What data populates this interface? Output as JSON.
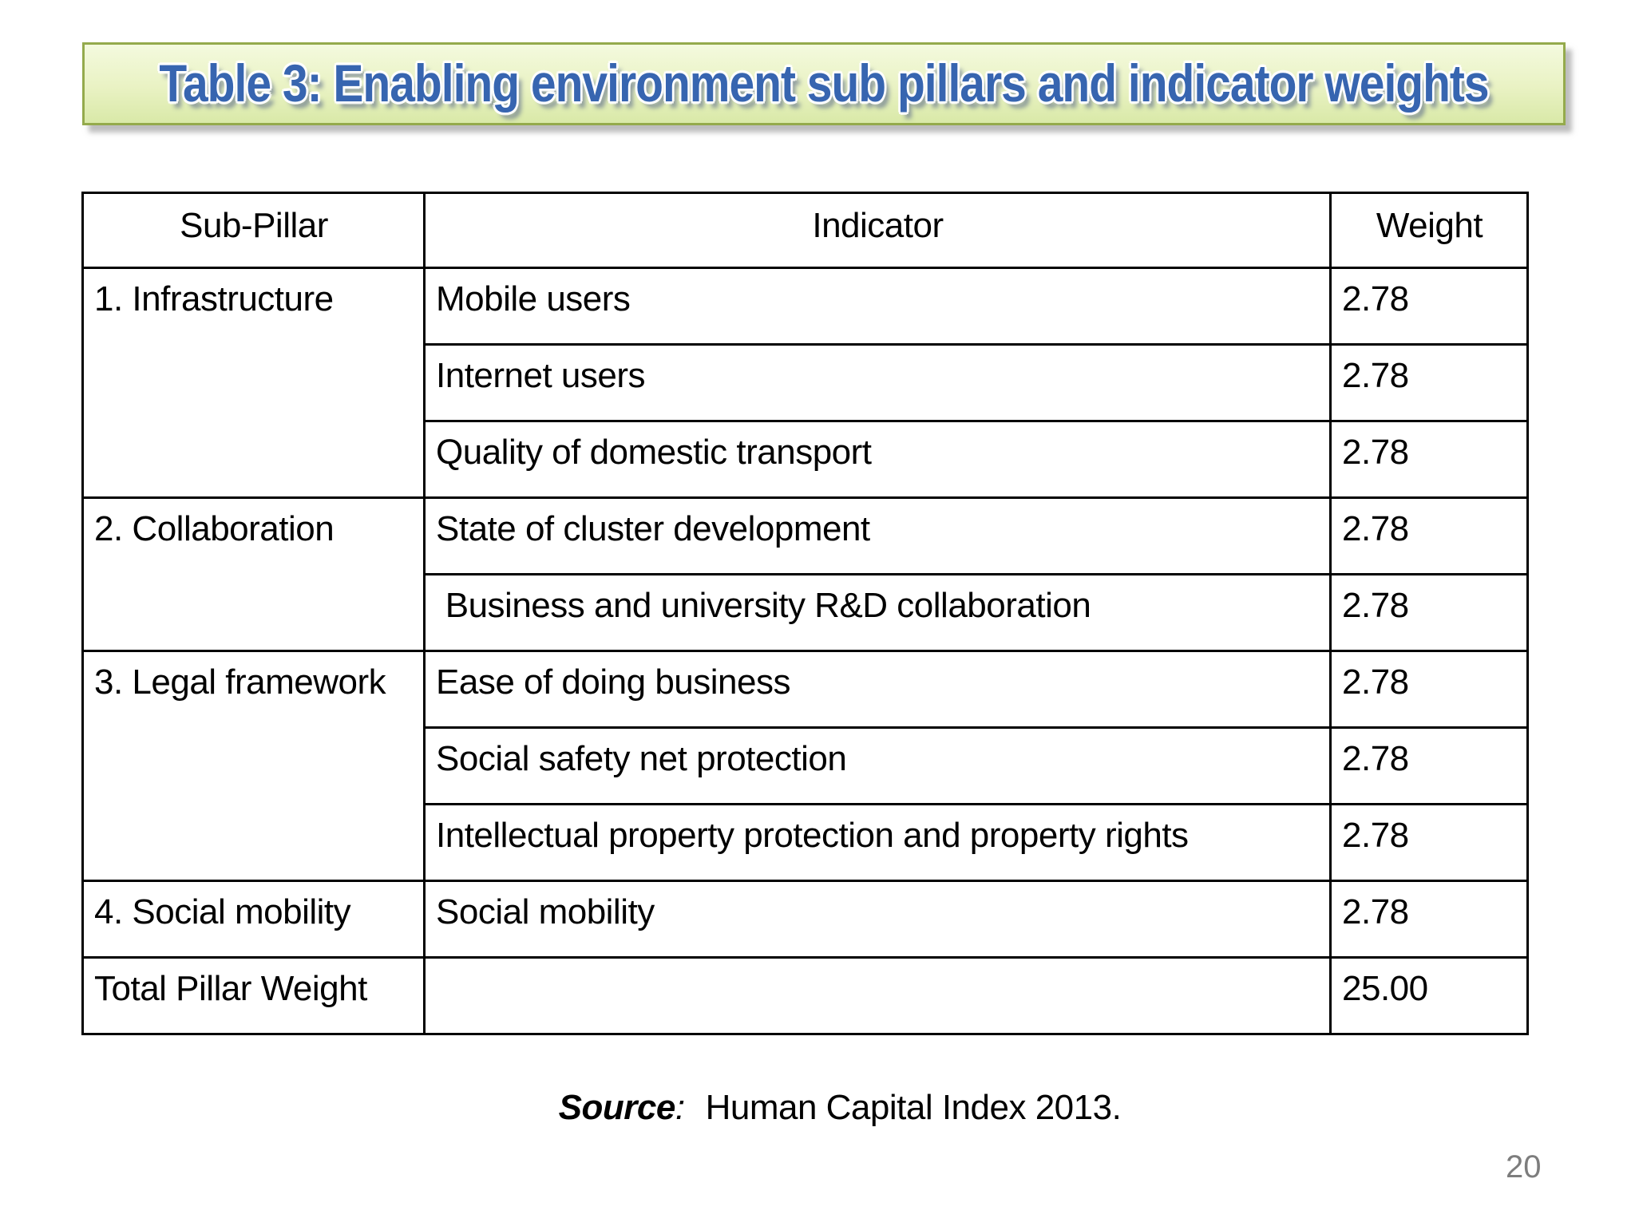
{
  "slide": {
    "title": "Table 3: Enabling environment sub pillars and indicator weights",
    "page_number": "20",
    "source": {
      "label": "Source",
      "separator": ":",
      "text": "Human Capital Index 2013."
    }
  },
  "table": {
    "columns": [
      "Sub-Pillar",
      "Indicator",
      "Weight"
    ],
    "groups": [
      {
        "sub_pillar": "1. Infrastructure",
        "rows": [
          {
            "indicator": "Mobile users",
            "weight": "2.78"
          },
          {
            "indicator": "Internet users",
            "weight": "2.78"
          },
          {
            "indicator": "Quality of domestic transport",
            "weight": "2.78"
          }
        ]
      },
      {
        "sub_pillar": "2. Collaboration",
        "rows": [
          {
            "indicator": "State of cluster development",
            "weight": "2.78"
          },
          {
            "indicator": " Business and university R&D collaboration",
            "weight": "2.78"
          }
        ]
      },
      {
        "sub_pillar": "3. Legal framework",
        "rows": [
          {
            "indicator": "Ease of doing business",
            "weight": "2.78"
          },
          {
            "indicator": "Social safety net protection",
            "weight": "2.78"
          },
          {
            "indicator": "Intellectual property protection and property rights",
            "weight": "2.78"
          }
        ]
      },
      {
        "sub_pillar": "4. Social mobility",
        "rows": [
          {
            "indicator": "Social mobility",
            "weight": "2.78"
          }
        ]
      }
    ],
    "total_row": {
      "label": "Total Pillar Weight",
      "indicator": "",
      "weight": "25.00"
    }
  },
  "colors": {
    "slide_bg": "#ffffff",
    "banner_fill_top": "#f4fade",
    "banner_fill_bottom": "#d9e9a8",
    "banner_border": "#94aa4c",
    "title_blue": "#3765b0",
    "table_border": "#000000",
    "page_gray": "#7d7d7d"
  }
}
